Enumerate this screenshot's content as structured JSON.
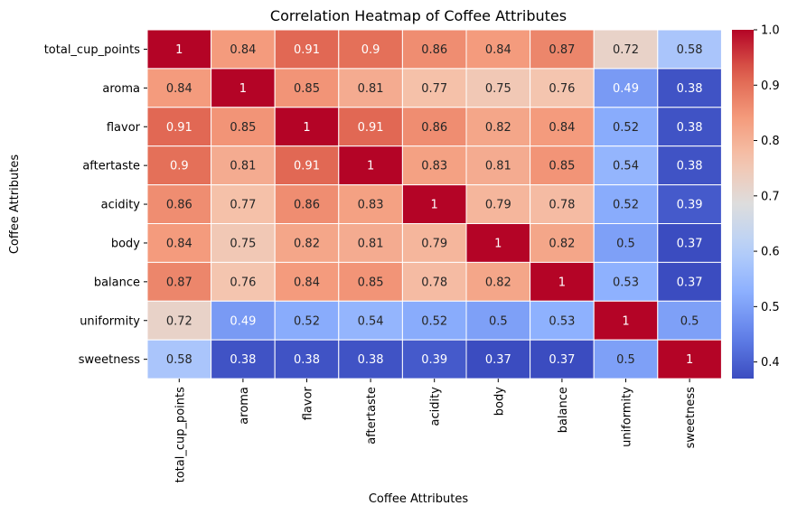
{
  "chart_data": {
    "type": "heatmap",
    "title": "Correlation Heatmap of Coffee Attributes",
    "xlabel": "Coffee Attributes",
    "ylabel": "Coffee Attributes",
    "categories": [
      "total_cup_points",
      "aroma",
      "flavor",
      "aftertaste",
      "acidity",
      "body",
      "balance",
      "uniformity",
      "sweetness"
    ],
    "values": [
      [
        1,
        0.84,
        0.91,
        0.9,
        0.86,
        0.84,
        0.87,
        0.72,
        0.58
      ],
      [
        0.84,
        1,
        0.85,
        0.81,
        0.77,
        0.75,
        0.76,
        0.49,
        0.38
      ],
      [
        0.91,
        0.85,
        1,
        0.91,
        0.86,
        0.82,
        0.84,
        0.52,
        0.38
      ],
      [
        0.9,
        0.81,
        0.91,
        1,
        0.83,
        0.81,
        0.85,
        0.54,
        0.38
      ],
      [
        0.86,
        0.77,
        0.86,
        0.83,
        1,
        0.79,
        0.78,
        0.52,
        0.39
      ],
      [
        0.84,
        0.75,
        0.82,
        0.81,
        0.79,
        1,
        0.82,
        0.5,
        0.37
      ],
      [
        0.87,
        0.76,
        0.84,
        0.85,
        0.78,
        0.82,
        1,
        0.53,
        0.37
      ],
      [
        0.72,
        0.49,
        0.52,
        0.54,
        0.52,
        0.5,
        0.53,
        1,
        0.5
      ],
      [
        0.58,
        0.38,
        0.38,
        0.38,
        0.39,
        0.37,
        0.37,
        0.5,
        1
      ]
    ],
    "colormap": "coolwarm",
    "vmin": 0.37,
    "vmax": 1.0,
    "colorbar_ticks": [
      "0.4",
      "0.5",
      "0.6",
      "0.7",
      "0.8",
      "0.9",
      "1.0"
    ],
    "annotated": true,
    "legend": "colorbar-right"
  }
}
